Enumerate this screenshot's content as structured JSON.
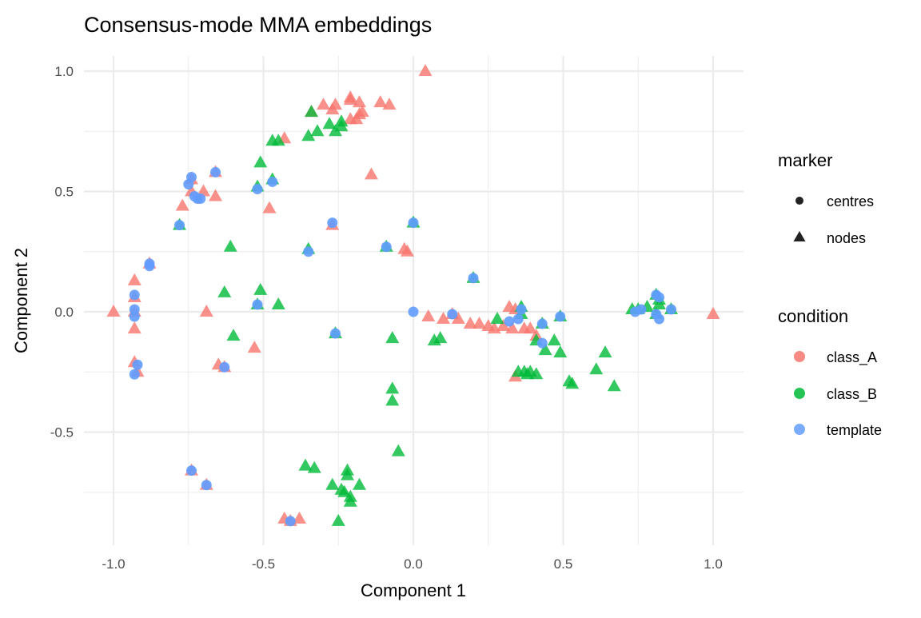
{
  "chart_data": {
    "type": "scatter",
    "title": "Consensus-mode MMA embeddings",
    "xlabel": "Component 1",
    "ylabel": "Component 2",
    "xlim": [
      -1.1,
      1.1
    ],
    "ylim": [
      -0.97,
      1.06
    ],
    "x_ticks": [
      -1.0,
      -0.5,
      0.0,
      0.5,
      1.0
    ],
    "x_tick_labels": [
      "-1.0",
      "-0.5",
      "0.0",
      "0.5",
      "1.0"
    ],
    "y_ticks": [
      -0.5,
      0.0,
      0.5,
      1.0
    ],
    "y_tick_labels": [
      "-0.5",
      "0.0",
      "0.5",
      "1.0"
    ],
    "grid": true,
    "legend_placement": "right",
    "legends": {
      "marker": {
        "title": "marker",
        "entries": [
          {
            "label": "centres",
            "shape": "circle"
          },
          {
            "label": "nodes",
            "shape": "triangle"
          }
        ]
      },
      "condition": {
        "title": "condition",
        "entries": [
          {
            "label": "class_A",
            "color": "#F8766D"
          },
          {
            "label": "class_B",
            "color": "#00BA38"
          },
          {
            "label": "template",
            "color": "#619CFF"
          }
        ]
      }
    },
    "series": [
      {
        "condition": "class_A",
        "marker": "nodes",
        "color": "#F8766D",
        "points": [
          [
            0.04,
            1.0
          ],
          [
            1.0,
            -0.01
          ],
          [
            -1.0,
            0.0
          ],
          [
            -0.27,
            0.84
          ],
          [
            -0.3,
            0.86
          ],
          [
            -0.26,
            0.86
          ],
          [
            -0.21,
            0.88
          ],
          [
            -0.21,
            0.89
          ],
          [
            -0.18,
            0.87
          ],
          [
            -0.11,
            0.87
          ],
          [
            -0.08,
            0.86
          ],
          [
            -0.19,
            0.8
          ],
          [
            -0.18,
            0.82
          ],
          [
            -0.17,
            0.83
          ],
          [
            -0.21,
            0.8
          ],
          [
            -0.34,
            0.83
          ],
          [
            -0.43,
            0.72
          ],
          [
            -0.14,
            0.57
          ],
          [
            -0.77,
            0.44
          ],
          [
            -0.74,
            0.5
          ],
          [
            -0.7,
            0.5
          ],
          [
            -0.66,
            0.48
          ],
          [
            -0.48,
            0.43
          ],
          [
            -0.27,
            0.36
          ],
          [
            -0.74,
            0.55
          ],
          [
            -0.66,
            0.58
          ],
          [
            -0.88,
            0.2
          ],
          [
            -0.93,
            0.13
          ],
          [
            -0.93,
            0.06
          ],
          [
            -0.93,
            0.0
          ],
          [
            -0.93,
            -0.07
          ],
          [
            -0.93,
            -0.21
          ],
          [
            -0.92,
            -0.25
          ],
          [
            -0.69,
            0.0
          ],
          [
            -0.53,
            -0.15
          ],
          [
            -0.65,
            -0.22
          ],
          [
            -0.63,
            -0.23
          ],
          [
            -0.03,
            0.26
          ],
          [
            -0.02,
            0.25
          ],
          [
            -0.74,
            -0.66
          ],
          [
            -0.69,
            -0.72
          ],
          [
            -0.43,
            -0.86
          ],
          [
            -0.38,
            -0.86
          ],
          [
            -0.41,
            -0.87
          ],
          [
            0.05,
            -0.02
          ],
          [
            0.1,
            -0.03
          ],
          [
            0.15,
            -0.03
          ],
          [
            0.13,
            -0.01
          ],
          [
            0.19,
            -0.05
          ],
          [
            0.22,
            -0.05
          ],
          [
            0.27,
            -0.07
          ],
          [
            0.3,
            -0.06
          ],
          [
            0.32,
            0.02
          ],
          [
            0.33,
            -0.07
          ],
          [
            0.37,
            -0.07
          ],
          [
            0.39,
            -0.07
          ],
          [
            0.41,
            -0.1
          ],
          [
            0.34,
            -0.27
          ],
          [
            0.25,
            -0.06
          ],
          [
            0.34,
            0.01
          ]
        ]
      },
      {
        "condition": "class_B",
        "marker": "nodes",
        "color": "#00BA38",
        "points": [
          [
            -0.34,
            0.83
          ],
          [
            -0.26,
            0.75
          ],
          [
            -0.24,
            0.79
          ],
          [
            -0.28,
            0.78
          ],
          [
            -0.35,
            0.73
          ],
          [
            -0.32,
            0.75
          ],
          [
            -0.24,
            0.77
          ],
          [
            -0.47,
            0.71
          ],
          [
            -0.45,
            0.71
          ],
          [
            -0.51,
            0.62
          ],
          [
            -0.47,
            0.55
          ],
          [
            -0.52,
            0.52
          ],
          [
            -0.78,
            0.36
          ],
          [
            -0.35,
            0.26
          ],
          [
            -0.61,
            0.27
          ],
          [
            -0.63,
            0.08
          ],
          [
            -0.51,
            0.09
          ],
          [
            -0.45,
            0.03
          ],
          [
            -0.52,
            0.03
          ],
          [
            -0.6,
            -0.1
          ],
          [
            -0.26,
            -0.09
          ],
          [
            -0.07,
            -0.11
          ],
          [
            -0.09,
            0.27
          ],
          [
            0.0,
            0.37
          ],
          [
            0.2,
            0.14
          ],
          [
            -0.07,
            -0.32
          ],
          [
            -0.07,
            -0.37
          ],
          [
            -0.05,
            -0.58
          ],
          [
            -0.36,
            -0.64
          ],
          [
            -0.33,
            -0.65
          ],
          [
            -0.22,
            -0.66
          ],
          [
            -0.22,
            -0.68
          ],
          [
            -0.27,
            -0.72
          ],
          [
            -0.18,
            -0.72
          ],
          [
            -0.24,
            -0.74
          ],
          [
            -0.21,
            -0.77
          ],
          [
            -0.21,
            -0.79
          ],
          [
            -0.25,
            -0.87
          ],
          [
            -0.23,
            -0.75
          ],
          [
            0.07,
            -0.12
          ],
          [
            0.09,
            -0.11
          ],
          [
            0.28,
            -0.03
          ],
          [
            0.36,
            0.02
          ],
          [
            0.41,
            -0.12
          ],
          [
            0.47,
            -0.12
          ],
          [
            0.49,
            -0.17
          ],
          [
            0.44,
            -0.16
          ],
          [
            0.64,
            -0.17
          ],
          [
            0.61,
            -0.24
          ],
          [
            0.67,
            -0.31
          ],
          [
            0.52,
            -0.29
          ],
          [
            0.53,
            -0.3
          ],
          [
            0.35,
            -0.25
          ],
          [
            0.37,
            -0.25
          ],
          [
            0.39,
            -0.25
          ],
          [
            0.41,
            -0.26
          ],
          [
            0.38,
            -0.26
          ],
          [
            0.43,
            -0.05
          ],
          [
            0.36,
            -0.01
          ],
          [
            0.73,
            0.01
          ],
          [
            0.75,
            0.01
          ],
          [
            0.81,
            0.07
          ],
          [
            0.82,
            0.05
          ],
          [
            0.78,
            0.02
          ],
          [
            0.86,
            0.01
          ],
          [
            0.81,
            -0.01
          ],
          [
            0.82,
            0.03
          ],
          [
            0.49,
            -0.02
          ]
        ]
      },
      {
        "condition": "template",
        "marker": "centres",
        "color": "#619CFF",
        "points": [
          [
            -0.74,
            0.56
          ],
          [
            -0.75,
            0.53
          ],
          [
            -0.73,
            0.48
          ],
          [
            -0.72,
            0.47
          ],
          [
            -0.71,
            0.47
          ],
          [
            -0.66,
            0.58
          ],
          [
            -0.52,
            0.51
          ],
          [
            -0.47,
            0.54
          ],
          [
            -0.78,
            0.36
          ],
          [
            -0.27,
            0.37
          ],
          [
            -0.35,
            0.25
          ],
          [
            -0.09,
            0.27
          ],
          [
            0.0,
            0.37
          ],
          [
            -0.88,
            0.2
          ],
          [
            -0.88,
            0.19
          ],
          [
            -0.93,
            0.07
          ],
          [
            -0.93,
            0.01
          ],
          [
            -0.93,
            -0.02
          ],
          [
            -0.52,
            0.03
          ],
          [
            -0.26,
            -0.09
          ],
          [
            -0.92,
            -0.22
          ],
          [
            -0.93,
            -0.26
          ],
          [
            -0.63,
            -0.23
          ],
          [
            -0.74,
            -0.66
          ],
          [
            -0.69,
            -0.72
          ],
          [
            -0.41,
            -0.87
          ],
          [
            0.0,
            0.0
          ],
          [
            0.13,
            -0.01
          ],
          [
            0.2,
            0.14
          ],
          [
            0.32,
            -0.04
          ],
          [
            0.35,
            -0.03
          ],
          [
            0.36,
            0.01
          ],
          [
            0.43,
            -0.05
          ],
          [
            0.43,
            -0.13
          ],
          [
            0.49,
            -0.02
          ],
          [
            0.74,
            0.0
          ],
          [
            0.76,
            0.01
          ],
          [
            0.81,
            0.07
          ],
          [
            0.82,
            0.06
          ],
          [
            0.81,
            -0.01
          ],
          [
            0.82,
            -0.03
          ],
          [
            0.86,
            0.01
          ]
        ]
      }
    ]
  }
}
